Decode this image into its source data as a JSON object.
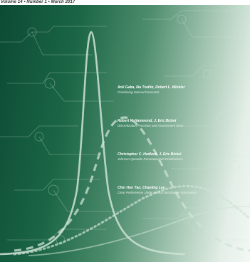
{
  "issue_line": "Volume 14 • Number 1 • March 2017",
  "articles": [
    {
      "authors": "Anil Gaba, Ilia Tsetlin, Robert L. Winkler",
      "title": "Combining Interval Forecasts"
    },
    {
      "authors": "Robert K. Hammond, J. Eric Bickel",
      "title": "Discretization Precision and Assessment Error"
    },
    {
      "authors": "Christopher C. Hadlock, J. Eric Bickel",
      "title": "Johnson Quantile-Parameterized Distributions"
    },
    {
      "authors": "Chin Hon Tan, Chaoling Lee",
      "title": "Clear Preferences Under Partial Distribution Information"
    }
  ],
  "decoration": {
    "background_colors": [
      "#0c4a34",
      "#1b6646",
      "#4f8e6e",
      "#a9c9b6",
      "#f3f8f4"
    ],
    "curve_color": "#cfe3d6",
    "motif": "decision-tree nodes and branching lines"
  }
}
